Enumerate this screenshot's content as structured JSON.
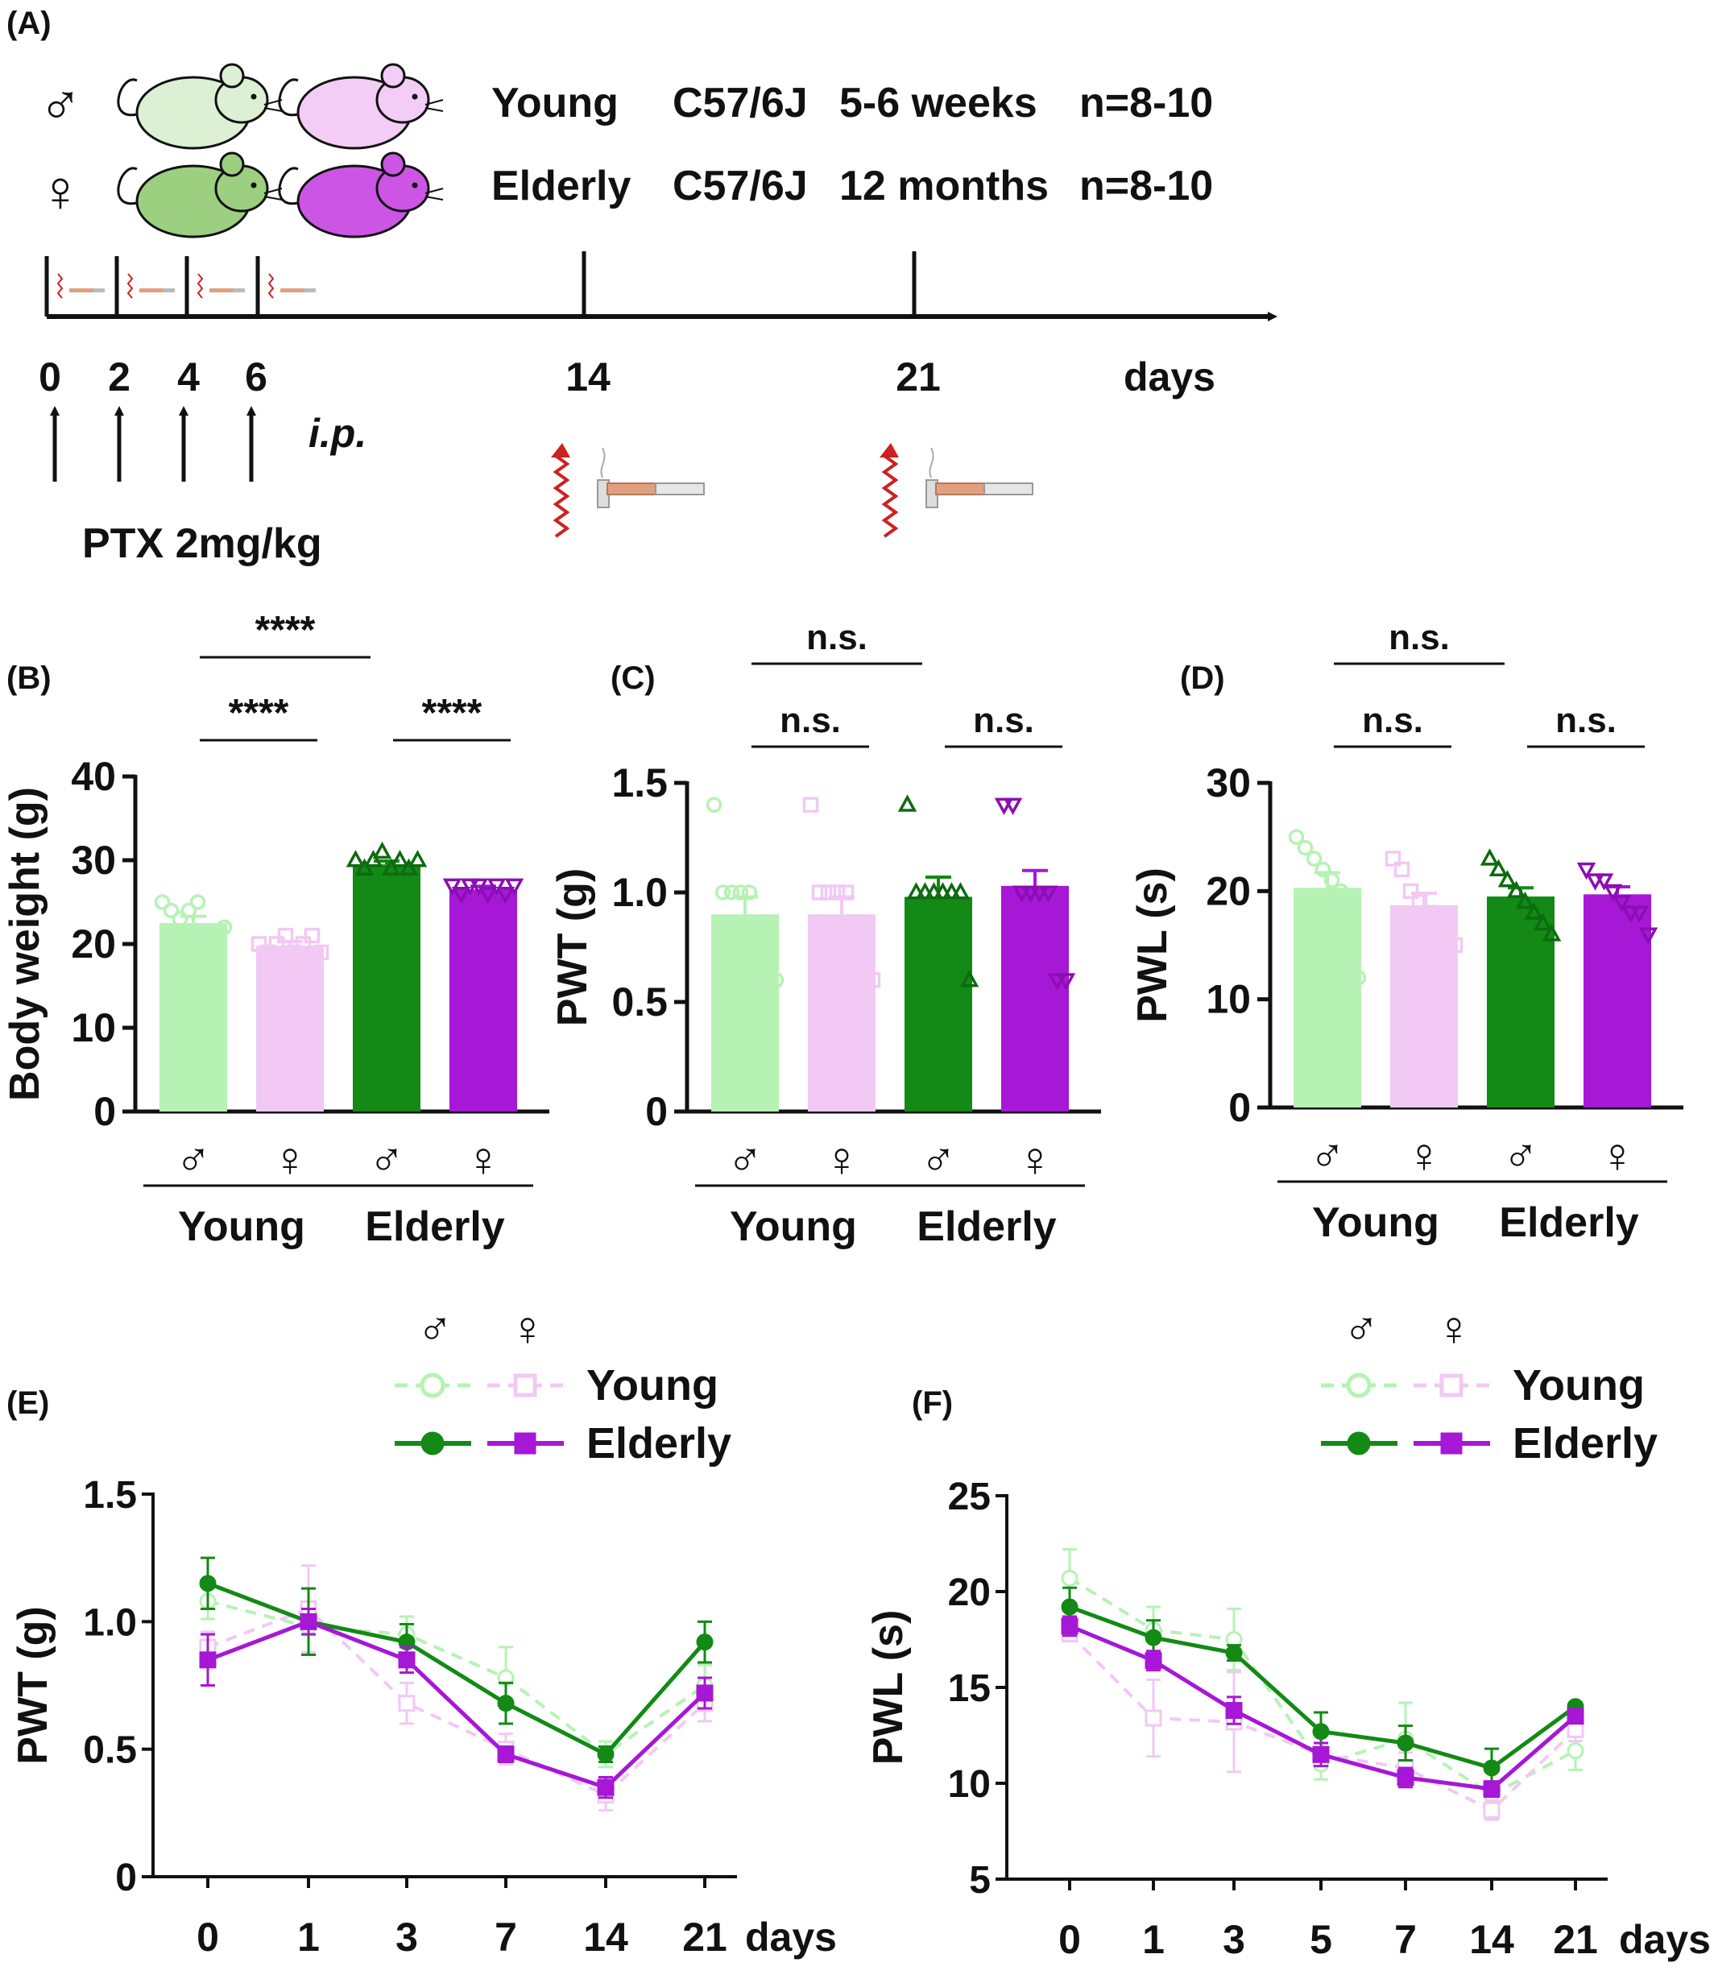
{
  "colors": {
    "young_male": "#b6f2b4",
    "young_female": "#f1c9f4",
    "elderly_male": "#128a15",
    "elderly_female": "#a617d6",
    "axis": "#111111",
    "syringe": "#e0a07f",
    "heat": "#cc2222"
  },
  "symbols": {
    "male": "♂",
    "female": "♀"
  },
  "panel_a": {
    "label": "(A)",
    "cohorts": [
      {
        "sex_symbol": "♂",
        "group": "Young",
        "strain": "C57/6J",
        "age": "5-6 weeks",
        "n": "n=8-10"
      },
      {
        "sex_symbol": "♀",
        "group": "Elderly",
        "strain": "C57/6J",
        "age": "12  months",
        "n": "n=8-10"
      }
    ],
    "mouse_icons": [
      "young-male-mouse-icon",
      "young-female-mouse-icon",
      "elderly-male-mouse-icon",
      "elderly-female-mouse-icon"
    ],
    "timeline_ticks": [
      "0",
      "2",
      "4",
      "6",
      "14",
      "21"
    ],
    "timeline_unit": "days",
    "route": "i.p.",
    "treatment": "PTX 2mg/kg"
  },
  "chart_data": [
    {
      "panel": "(B)",
      "type": "bar",
      "ylabel": "Body weight (g)",
      "ylim": [
        0,
        40
      ],
      "yticks": [
        "0",
        "10",
        "20",
        "30",
        "40"
      ],
      "groups": [
        {
          "label": "Young",
          "categories": [
            "♂",
            "♀"
          ]
        },
        {
          "label": "Elderly",
          "categories": [
            "♂",
            "♀"
          ]
        }
      ],
      "bars": [
        {
          "name": "Young ♂",
          "value": 22.5,
          "sem": 0.8,
          "points": [
            25,
            24,
            23,
            24,
            25,
            21,
            20,
            22
          ]
        },
        {
          "name": "Young ♀",
          "value": 19.8,
          "sem": 0.5,
          "points": [
            20,
            19,
            20,
            21,
            19,
            20,
            21,
            19
          ]
        },
        {
          "name": "Elderly ♂",
          "value": 29.5,
          "sem": 0.4,
          "points": [
            30,
            29,
            30,
            31,
            29,
            30,
            29,
            30
          ]
        },
        {
          "name": "Elderly ♀",
          "value": 26.5,
          "sem": 0.4,
          "points": [
            27,
            26,
            27,
            27,
            26,
            27,
            26,
            27
          ]
        }
      ],
      "comparisons": [
        {
          "from": 0,
          "to": 1,
          "label": "****",
          "tier": 1
        },
        {
          "from": 2,
          "to": 3,
          "label": "****",
          "tier": 1
        },
        {
          "from": 0,
          "to": 2,
          "label": "****",
          "tier": 2
        }
      ]
    },
    {
      "panel": "(C)",
      "type": "bar",
      "ylabel": "PWT (g)",
      "ylim": [
        0,
        1.5
      ],
      "yticks": [
        "0",
        "0.5",
        "1.0",
        "1.5"
      ],
      "groups": [
        {
          "label": "Young",
          "categories": [
            "♂",
            "♀"
          ]
        },
        {
          "label": "Elderly",
          "categories": [
            "♂",
            "♀"
          ]
        }
      ],
      "bars": [
        {
          "name": "Young ♂",
          "value": 0.9,
          "sem": 0.08,
          "points": [
            1.4,
            1.0,
            1.0,
            1.0,
            1.0,
            0.6,
            0.6,
            0.6
          ]
        },
        {
          "name": "Young ♀",
          "value": 0.9,
          "sem": 0.08,
          "points": [
            1.4,
            1.0,
            1.0,
            1.0,
            1.0,
            0.6,
            0.6,
            0.6
          ]
        },
        {
          "name": "Elderly ♂",
          "value": 0.98,
          "sem": 0.09,
          "points": [
            1.4,
            1.0,
            1.0,
            1.0,
            1.0,
            1.0,
            1.0,
            0.6
          ]
        },
        {
          "name": "Elderly ♀",
          "value": 1.03,
          "sem": 0.07,
          "points": [
            1.4,
            1.4,
            1.0,
            1.0,
            1.0,
            1.0,
            0.6,
            0.6
          ]
        }
      ],
      "comparisons": [
        {
          "from": 0,
          "to": 1,
          "label": "n.s.",
          "tier": 1
        },
        {
          "from": 2,
          "to": 3,
          "label": "n.s.",
          "tier": 1
        },
        {
          "from": 0,
          "to": 2,
          "label": "n.s.",
          "tier": 2
        }
      ]
    },
    {
      "panel": "(D)",
      "type": "bar",
      "ylabel": "PWL (s)",
      "ylim": [
        0,
        30
      ],
      "yticks": [
        "0",
        "10",
        "20",
        "30"
      ],
      "groups": [
        {
          "label": "Young",
          "categories": [
            "♂",
            "♀"
          ]
        },
        {
          "label": "Elderly",
          "categories": [
            "♂",
            "♀"
          ]
        }
      ],
      "bars": [
        {
          "name": "Young ♂",
          "value": 20.3,
          "sem": 1.4,
          "points": [
            25,
            24,
            23,
            22,
            21,
            20,
            19,
            12
          ]
        },
        {
          "name": "Young ♀",
          "value": 18.7,
          "sem": 1.1,
          "points": [
            23,
            22,
            20,
            19,
            18,
            17,
            16,
            15
          ]
        },
        {
          "name": "Elderly ♂",
          "value": 19.5,
          "sem": 0.8,
          "points": [
            23,
            22,
            21,
            20,
            19,
            18,
            17,
            16
          ]
        },
        {
          "name": "Elderly ♀",
          "value": 19.7,
          "sem": 0.7,
          "points": [
            22,
            21,
            21,
            20,
            19,
            18,
            18,
            16
          ]
        }
      ],
      "comparisons": [
        {
          "from": 0,
          "to": 1,
          "label": "n.s.",
          "tier": 1
        },
        {
          "from": 2,
          "to": 3,
          "label": "n.s.",
          "tier": 1
        },
        {
          "from": 0,
          "to": 2,
          "label": "n.s.",
          "tier": 2
        }
      ]
    },
    {
      "panel": "(E)",
      "type": "line",
      "ylabel": "PWT (g)",
      "ylim": [
        0,
        1.5
      ],
      "yticks": [
        "0",
        "0.5",
        "1.0",
        "1.5"
      ],
      "x": [
        "0",
        "1",
        "3",
        "7",
        "14",
        "21"
      ],
      "x_unit": "days",
      "legend": {
        "sex_symbols": [
          "♂",
          "♀"
        ],
        "rows": [
          "Young",
          "Elderly"
        ]
      },
      "series": [
        {
          "name": "Young ♂",
          "values": [
            1.08,
            0.98,
            0.95,
            0.78,
            0.48,
            0.75
          ],
          "sem": [
            0.07,
            0.1,
            0.07,
            0.12,
            0.05,
            0.08
          ]
        },
        {
          "name": "Young ♀",
          "values": [
            0.9,
            1.05,
            0.68,
            0.5,
            0.32,
            0.68
          ],
          "sem": [
            0.06,
            0.17,
            0.08,
            0.06,
            0.06,
            0.07
          ]
        },
        {
          "name": "Elderly ♂",
          "values": [
            1.15,
            1.0,
            0.92,
            0.68,
            0.48,
            0.92
          ],
          "sem": [
            0.1,
            0.13,
            0.07,
            0.08,
            0.03,
            0.08
          ]
        },
        {
          "name": "Elderly ♀",
          "values": [
            0.85,
            1.0,
            0.85,
            0.48,
            0.35,
            0.72
          ],
          "sem": [
            0.1,
            0.05,
            0.05,
            0.03,
            0.04,
            0.06
          ]
        }
      ]
    },
    {
      "panel": "(F)",
      "type": "line",
      "ylabel": "PWL (s)",
      "ylim": [
        5,
        25
      ],
      "yticks": [
        "5",
        "10",
        "15",
        "20",
        "25"
      ],
      "x": [
        "0",
        "1",
        "3",
        "5",
        "7",
        "14",
        "21"
      ],
      "x_unit": "days",
      "legend": {
        "sex_symbols": [
          "♂",
          "♀"
        ],
        "rows": [
          "Young",
          "Elderly"
        ]
      },
      "series": [
        {
          "name": "Young ♂",
          "values": [
            20.7,
            18.0,
            17.5,
            11.0,
            12.3,
            9.4,
            11.7
          ],
          "sem": [
            1.5,
            1.2,
            1.6,
            0.8,
            1.9,
            1.2,
            1.0
          ]
        },
        {
          "name": "Young ♀",
          "values": [
            17.8,
            13.4,
            13.2,
            11.5,
            10.8,
            8.6,
            12.8
          ],
          "sem": [
            0.4,
            2.0,
            2.6,
            0.6,
            0.8,
            0.5,
            0.6
          ]
        },
        {
          "name": "Elderly ♂",
          "values": [
            19.2,
            17.6,
            16.8,
            12.7,
            12.1,
            10.8,
            14.0
          ],
          "sem": [
            1.0,
            0.9,
            0.4,
            1.0,
            0.9,
            1.0,
            0.2
          ]
        },
        {
          "name": "Elderly ♀",
          "values": [
            18.2,
            16.4,
            13.8,
            11.5,
            10.3,
            9.7,
            13.5
          ],
          "sem": [
            0.5,
            0.5,
            0.7,
            0.6,
            0.5,
            0.4,
            0.3
          ]
        }
      ]
    }
  ]
}
